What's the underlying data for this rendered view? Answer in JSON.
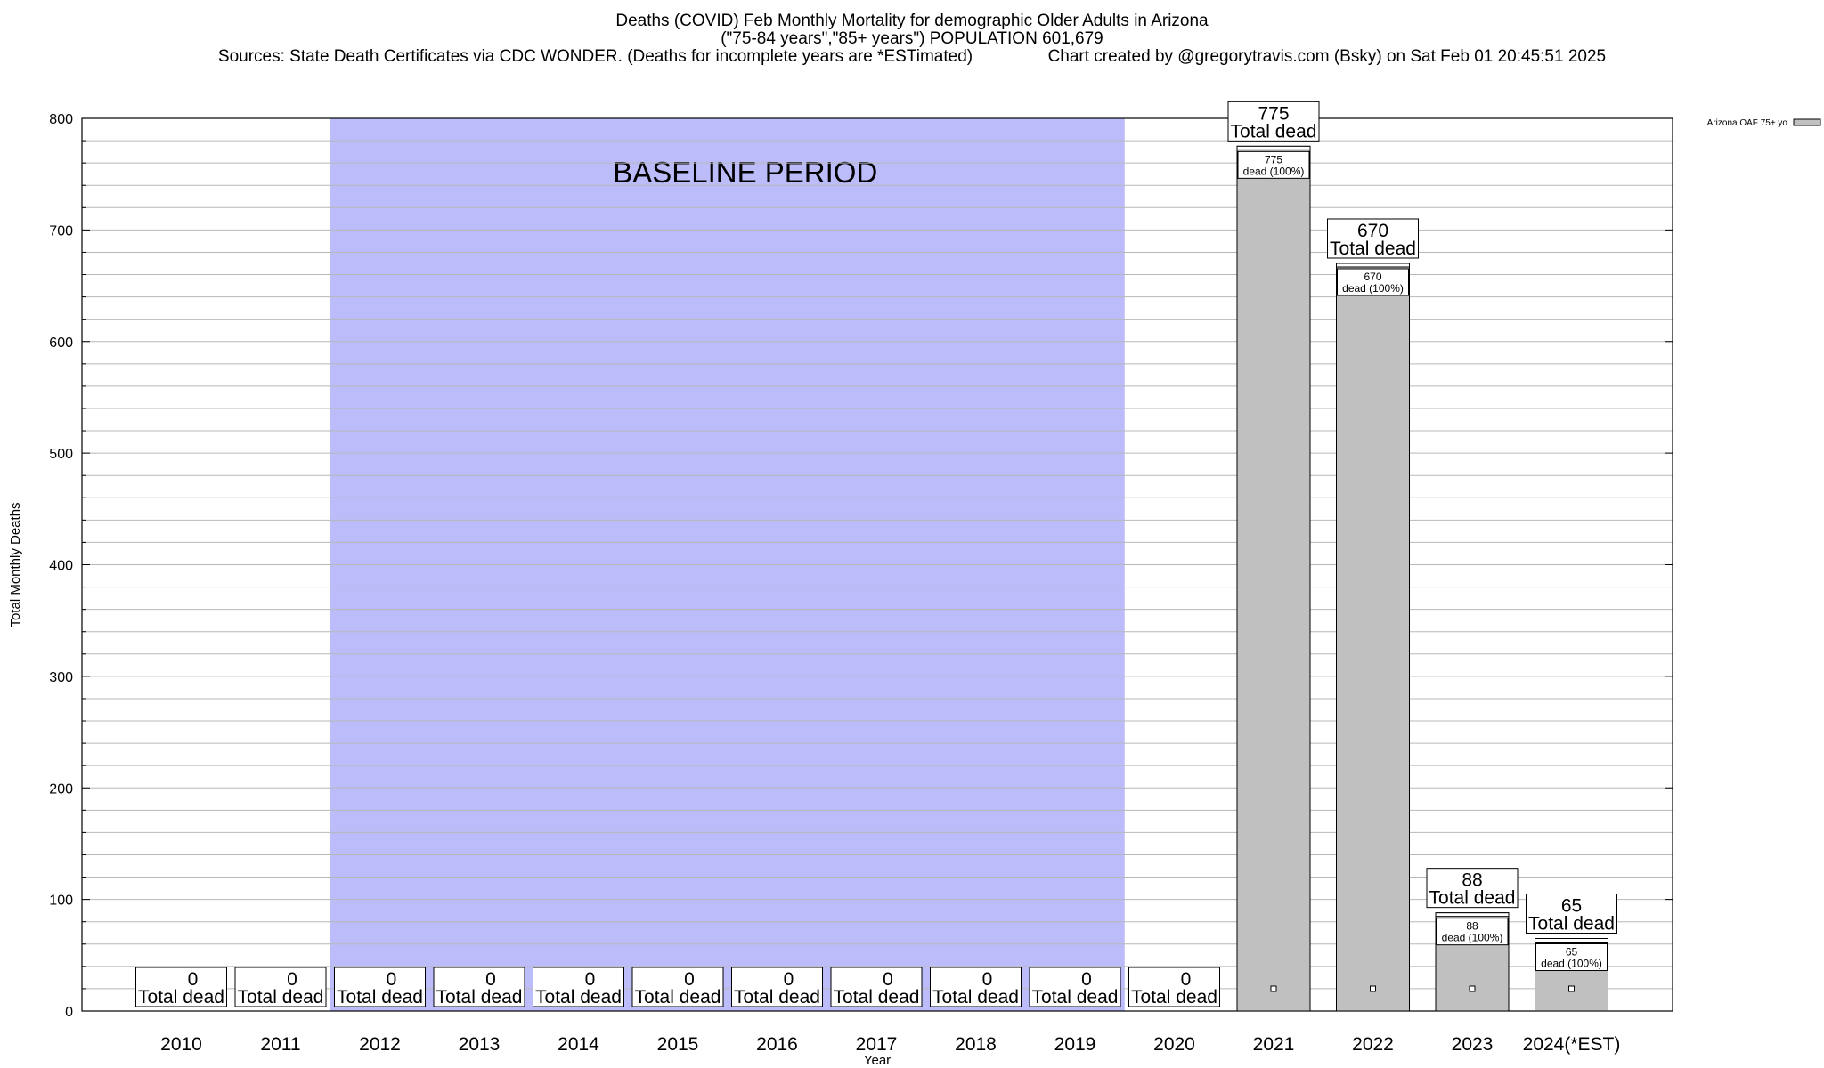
{
  "chart_data": {
    "type": "bar",
    "title": "Deaths (COVID) Feb Monthly Mortality for demographic Older Adults in Arizona",
    "subtitle": "(\"75-84 years\",\"85+ years\") POPULATION 601,679",
    "sources": "Sources: State Death Certificates via CDC WONDER. (Deaths for incomplete years are *ESTimated)",
    "credit": "Chart created by @gregorytravis.com (Bsky) on Sat Feb 01 20:45:51 2025",
    "xlabel": "Year",
    "ylabel": "Total Monthly Deaths",
    "ylim": [
      0,
      800
    ],
    "yticks": [
      0,
      100,
      200,
      300,
      400,
      500,
      600,
      700,
      800
    ],
    "grid": true,
    "legend_position": "top-right",
    "categories": [
      "2010",
      "2011",
      "2012",
      "2013",
      "2014",
      "2015",
      "2016",
      "2017",
      "2018",
      "2019",
      "2020",
      "2021",
      "2022",
      "2023",
      "2024(*EST)"
    ],
    "series": [
      {
        "name": "Arizona OAF 75+ yo",
        "values": [
          0,
          0,
          0,
          0,
          0,
          0,
          0,
          0,
          0,
          0,
          0,
          775,
          670,
          88,
          65
        ]
      }
    ],
    "total_label": "Total dead",
    "inner_label": "dead (100%)",
    "baseline": {
      "label": "BASELINE PERIOD",
      "from": "2012",
      "to": "2019"
    },
    "colors": {
      "bar": "#c0c0c0",
      "baseline": "#bcbcfb",
      "grid": "#b8b8b8"
    }
  }
}
